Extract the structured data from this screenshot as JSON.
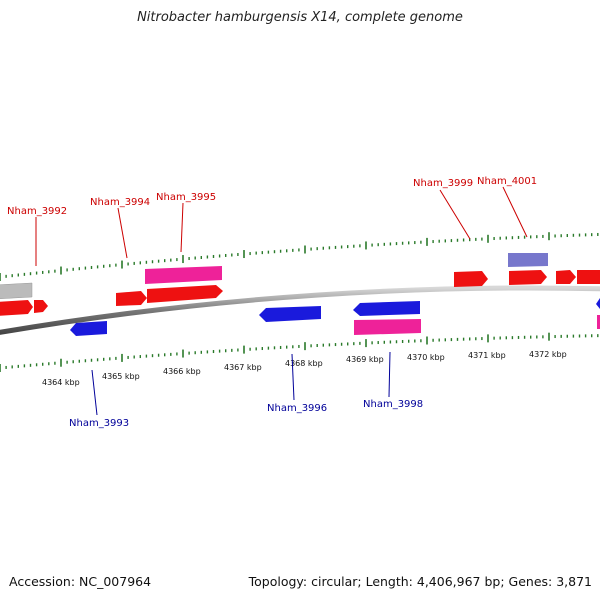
{
  "title": "Nitrobacter hamburgensis X14, complete genome",
  "footer": {
    "accession": "Accession: NC_007964",
    "stats": "Topology: circular; Length: 4,406,967 bp; Genes: 3,871"
  },
  "colors": {
    "forward_gene": "#ee1111",
    "reverse_gene": "#1a1adc",
    "pink_gene": "#ee2299",
    "purple_gene": "#7777cc",
    "gray_gene": "#bbbbbb",
    "backbone": "#888888",
    "tick": "#2a7a2a",
    "forward_label": "#cc0000",
    "reverse_label": "#000099"
  },
  "scale_labels": [
    "4364 kbp",
    "4365 kbp",
    "4366 kbp",
    "4367 kbp",
    "4368 kbp",
    "4369 kbp",
    "4370 kbp",
    "4371 kbp",
    "4372 kbp"
  ],
  "forward_labels": [
    "Nham_3992",
    "Nham_3994",
    "Nham_3995",
    "Nham_3999",
    "Nham_4001"
  ],
  "reverse_labels": [
    "Nham_3993",
    "Nham_3996",
    "Nham_3998"
  ]
}
